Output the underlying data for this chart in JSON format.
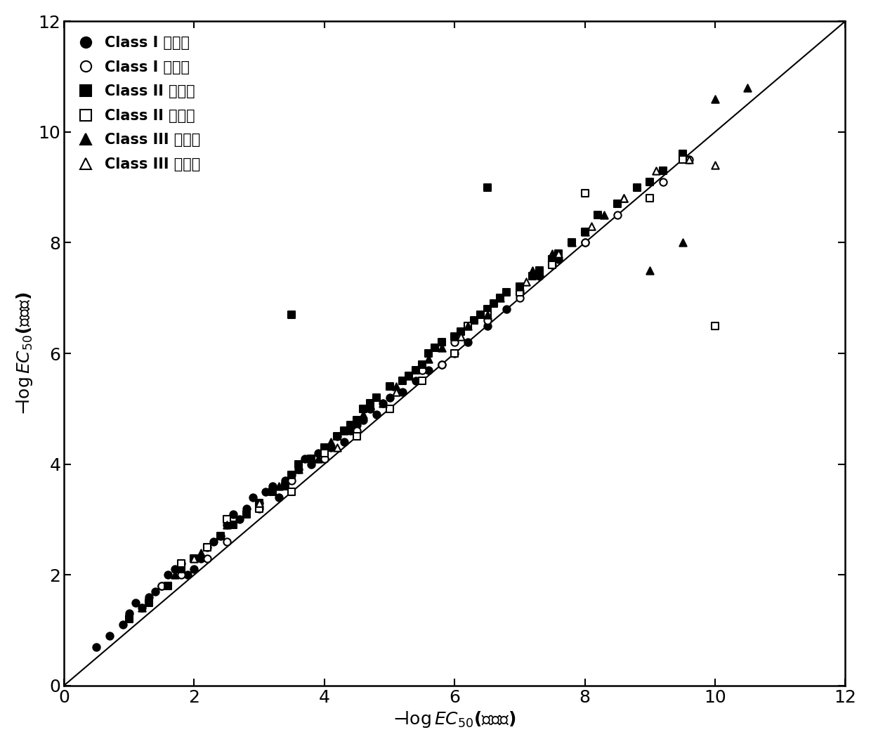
{
  "xlim": [
    0,
    12
  ],
  "ylim": [
    0,
    12
  ],
  "xticks": [
    0,
    2,
    4,
    6,
    8,
    10,
    12
  ],
  "yticks": [
    0,
    2,
    4,
    6,
    8,
    10,
    12
  ],
  "marker_size": 55,
  "line_color": "black",
  "marker_color": "black",
  "font_size": 18,
  "legend_font_size": 15,
  "class1_train_x": [
    0.5,
    0.7,
    0.9,
    1.0,
    1.1,
    1.2,
    1.3,
    1.4,
    1.5,
    1.6,
    1.7,
    1.8,
    1.9,
    2.0,
    2.1,
    2.2,
    2.3,
    2.4,
    2.5,
    2.6,
    2.7,
    2.8,
    2.9,
    3.0,
    3.1,
    3.2,
    3.3,
    3.4,
    3.5,
    3.6,
    3.7,
    3.8,
    3.9,
    4.0,
    4.1,
    4.2,
    4.3,
    4.4,
    4.5,
    4.6,
    4.7,
    4.8,
    4.9,
    5.0,
    5.2,
    5.4,
    5.6,
    5.8,
    6.0,
    6.2,
    6.5,
    6.8,
    7.0,
    7.3,
    7.6,
    8.0
  ],
  "class1_train_y": [
    0.7,
    0.9,
    1.1,
    1.3,
    1.5,
    1.4,
    1.6,
    1.7,
    1.8,
    2.0,
    2.1,
    2.2,
    2.0,
    2.1,
    2.3,
    2.5,
    2.6,
    2.7,
    2.9,
    3.1,
    3.0,
    3.2,
    3.4,
    3.3,
    3.5,
    3.6,
    3.4,
    3.7,
    3.8,
    3.9,
    4.1,
    4.0,
    4.2,
    4.1,
    4.3,
    4.5,
    4.4,
    4.6,
    4.7,
    4.8,
    5.0,
    4.9,
    5.1,
    5.2,
    5.3,
    5.5,
    5.7,
    5.8,
    6.0,
    6.2,
    6.5,
    6.8,
    7.1,
    7.4,
    7.7,
    8.0
  ],
  "class1_val_x": [
    1.5,
    1.8,
    2.2,
    2.5,
    3.0,
    3.5,
    4.0,
    4.5,
    5.8,
    5.5,
    6.0,
    6.5,
    7.0,
    7.5,
    8.0,
    8.5,
    9.2,
    9.6
  ],
  "class1_val_y": [
    1.8,
    2.0,
    2.3,
    2.6,
    3.2,
    3.7,
    4.1,
    4.6,
    5.8,
    5.7,
    6.2,
    6.6,
    7.0,
    7.6,
    8.0,
    8.5,
    9.1,
    9.5
  ],
  "class2_train_x": [
    1.0,
    1.3,
    1.6,
    1.8,
    2.0,
    2.2,
    2.4,
    2.6,
    2.8,
    3.0,
    3.2,
    3.4,
    3.5,
    3.6,
    3.8,
    4.0,
    4.2,
    4.3,
    4.4,
    4.5,
    4.6,
    4.7,
    4.8,
    5.0,
    5.2,
    5.3,
    5.4,
    5.5,
    5.6,
    5.7,
    5.8,
    6.0,
    6.1,
    6.2,
    6.3,
    6.4,
    6.5,
    6.6,
    6.7,
    6.8,
    7.0,
    7.2,
    7.3,
    7.5,
    7.6,
    7.8,
    8.0,
    8.2,
    8.5,
    8.8,
    9.0,
    9.2,
    9.5,
    3.5,
    6.5
  ],
  "class2_train_y": [
    1.2,
    1.5,
    1.8,
    2.1,
    2.3,
    2.5,
    2.7,
    2.9,
    3.1,
    3.3,
    3.5,
    3.6,
    3.8,
    4.0,
    4.1,
    4.3,
    4.5,
    4.6,
    4.7,
    4.8,
    5.0,
    5.1,
    5.2,
    5.4,
    5.5,
    5.6,
    5.7,
    5.8,
    6.0,
    6.1,
    6.2,
    6.3,
    6.4,
    6.5,
    6.6,
    6.7,
    6.8,
    6.9,
    7.0,
    7.1,
    7.2,
    7.4,
    7.5,
    7.7,
    7.8,
    8.0,
    8.2,
    8.5,
    8.7,
    9.0,
    9.1,
    9.3,
    9.6,
    6.7,
    9.0
  ],
  "class2_val_x": [
    1.8,
    2.2,
    2.5,
    3.0,
    3.5,
    4.0,
    4.5,
    5.0,
    5.5,
    6.0,
    6.2,
    6.5,
    7.0,
    7.5,
    8.0,
    9.0,
    9.5,
    10.0
  ],
  "class2_val_y": [
    2.2,
    2.5,
    3.0,
    3.2,
    3.5,
    4.2,
    4.5,
    5.0,
    5.5,
    6.0,
    6.5,
    6.7,
    7.1,
    7.6,
    8.9,
    8.8,
    9.5,
    6.5
  ],
  "class3_train_x": [
    1.2,
    1.7,
    2.1,
    2.5,
    3.0,
    3.3,
    3.6,
    3.9,
    4.1,
    4.3,
    4.6,
    4.9,
    5.1,
    5.3,
    5.6,
    5.8,
    6.0,
    6.2,
    6.5,
    6.7,
    7.0,
    7.2,
    7.5,
    7.8,
    8.0,
    8.3,
    8.6,
    9.0,
    9.5,
    10.0,
    10.5
  ],
  "class3_train_y": [
    1.4,
    2.0,
    2.4,
    2.9,
    3.3,
    3.6,
    3.9,
    4.1,
    4.4,
    4.6,
    4.9,
    5.1,
    5.4,
    5.6,
    5.9,
    6.1,
    6.3,
    6.5,
    6.7,
    7.0,
    7.2,
    7.5,
    7.8,
    8.0,
    8.2,
    8.5,
    8.8,
    7.5,
    8.0,
    10.6,
    10.8
  ],
  "class3_val_x": [
    2.0,
    3.0,
    4.2,
    5.1,
    6.1,
    7.1,
    7.6,
    8.1,
    8.6,
    9.1,
    9.6,
    10.0
  ],
  "class3_val_y": [
    2.3,
    3.3,
    4.3,
    5.3,
    6.3,
    7.3,
    7.8,
    8.3,
    8.8,
    9.3,
    9.5,
    9.4
  ]
}
